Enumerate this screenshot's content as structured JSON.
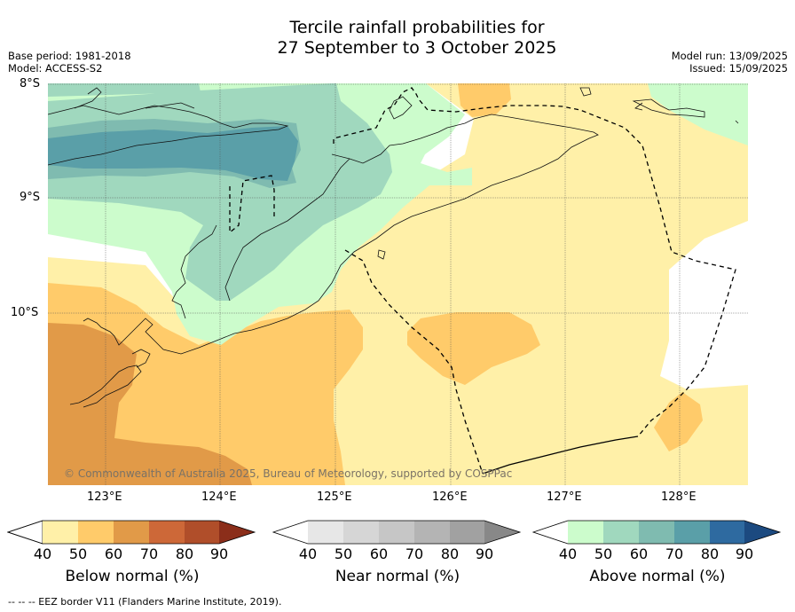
{
  "title_line1": "Tercile rainfall probabilities for",
  "title_line2": "27 September to 3 October 2025",
  "left_meta": {
    "base_period": "Base period: 1981-2018",
    "model": "Model: ACCESS-S2"
  },
  "right_meta": {
    "model_run": "Model run: 13/09/2025",
    "issued": "Issued: 15/09/2025"
  },
  "map": {
    "lat_labels": [
      "8°S",
      "9°S",
      "10°S"
    ],
    "lon_labels": [
      "123°E",
      "124°E",
      "125°E",
      "126°E",
      "127°E",
      "128°E"
    ],
    "copyright": "© Commonwealth of Australia 2025, Bureau of Meteorology, supported by COSPPac",
    "colors": {
      "below_40": "#fff0a8",
      "below_50": "#ffcb6a",
      "below_60": "#e19a48",
      "above_40": "#ccfccc",
      "above_50": "#a0d8be",
      "above_60": "#7fbbb0",
      "above_70": "#5a9fa8"
    }
  },
  "colorbars": [
    {
      "label": "Below normal (%)",
      "ticks": [
        "40",
        "50",
        "60",
        "70",
        "80",
        "90"
      ],
      "colors": [
        "#fff0a8",
        "#ffcb6a",
        "#e19a48",
        "#cd6838",
        "#b04e2a",
        "#8b2e1a"
      ]
    },
    {
      "label": "Near normal (%)",
      "ticks": [
        "40",
        "50",
        "60",
        "70",
        "80",
        "90"
      ],
      "colors": [
        "#e7e7e7",
        "#d6d6d6",
        "#c6c6c6",
        "#b4b4b4",
        "#a1a1a1",
        "#888888"
      ]
    },
    {
      "label": "Above normal (%)",
      "ticks": [
        "40",
        "50",
        "60",
        "70",
        "80",
        "90"
      ],
      "colors": [
        "#ccfccc",
        "#a0d8be",
        "#7fbbb0",
        "#5a9fa8",
        "#2e6aa0",
        "#1c4a80"
      ]
    }
  ],
  "footnote": "--  --  -- EEZ border V11 (Flanders Marine Institute, 2019)."
}
